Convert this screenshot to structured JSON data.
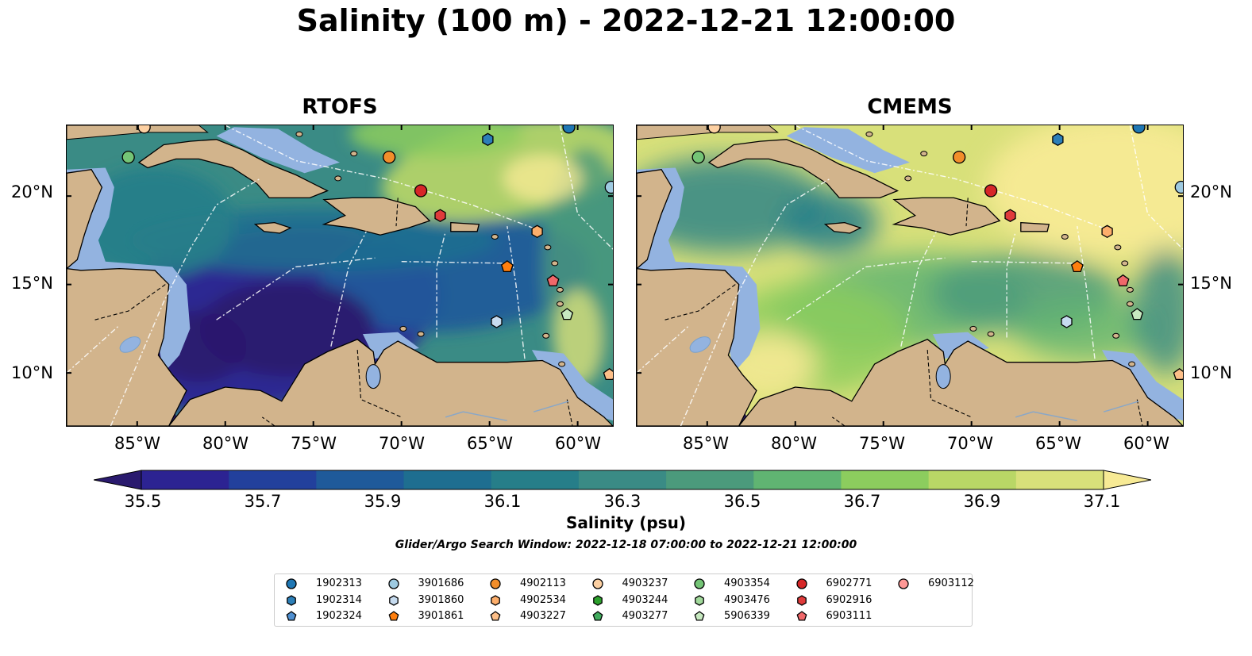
{
  "title": "Salinity (100 m) - 2022-12-21 12:00:00",
  "panels": [
    {
      "id": "rtofs",
      "title": "RTOFS"
    },
    {
      "id": "cmems",
      "title": "CMEMS"
    }
  ],
  "map": {
    "lon_range": [
      -89,
      -58
    ],
    "lat_range": [
      7,
      24
    ],
    "lon_ticks": [
      "85°W",
      "80°W",
      "75°W",
      "70°W",
      "65°W",
      "60°W"
    ],
    "lat_ticks": [
      "20°N",
      "15°N",
      "10°N"
    ],
    "colors": {
      "land": "#d2b48c",
      "shelf": "#93b3e0",
      "deep_ocean": "#2a1a64",
      "coast": "#000000"
    }
  },
  "colorbar": {
    "title": "Salinity (psu)",
    "ticks": [
      "35.5",
      "35.7",
      "35.9",
      "36.1",
      "36.3",
      "36.5",
      "36.7",
      "36.9",
      "37.1"
    ],
    "min": 35.4,
    "max": 37.2,
    "extend": "both",
    "colors": [
      "#2a1a6e",
      "#2c2392",
      "#22409c",
      "#1f5a9a",
      "#1e6e90",
      "#267e89",
      "#3a8b85",
      "#4b9a7c",
      "#60b472",
      "#8ccd5e",
      "#b9d766",
      "#d8e07a",
      "#f7ea95"
    ]
  },
  "search_window": "Glider/Argo Search Window: 2022-12-18 07:00:00 to 2022-12-21 12:00:00",
  "legend": [
    {
      "id": "1902313",
      "shape": "circle",
      "color": "#1f77b4"
    },
    {
      "id": "1902314",
      "shape": "hexagon",
      "color": "#2c7fb8"
    },
    {
      "id": "1902324",
      "shape": "pentagon",
      "color": "#4f8fd0"
    },
    {
      "id": "3901686",
      "shape": "circle",
      "color": "#9ecae1"
    },
    {
      "id": "3901860",
      "shape": "hexagon",
      "color": "#c6dbef"
    },
    {
      "id": "3901861",
      "shape": "pentagon",
      "color": "#ff7f0e"
    },
    {
      "id": "4902113",
      "shape": "circle",
      "color": "#f28e2b"
    },
    {
      "id": "4902534",
      "shape": "hexagon",
      "color": "#fdae6b"
    },
    {
      "id": "4903227",
      "shape": "pentagon",
      "color": "#fdbf88"
    },
    {
      "id": "4903237",
      "shape": "circle",
      "color": "#fdd0a2"
    },
    {
      "id": "4903244",
      "shape": "hexagon",
      "color": "#2ca02c"
    },
    {
      "id": "4903277",
      "shape": "pentagon",
      "color": "#41ab5d"
    },
    {
      "id": "4903354",
      "shape": "circle",
      "color": "#74c476"
    },
    {
      "id": "4903476",
      "shape": "hexagon",
      "color": "#a1d99b"
    },
    {
      "id": "5906339",
      "shape": "pentagon",
      "color": "#c7e9c0"
    },
    {
      "id": "6902771",
      "shape": "circle",
      "color": "#d62728"
    },
    {
      "id": "6902916",
      "shape": "hexagon",
      "color": "#e03b3b"
    },
    {
      "id": "6903111",
      "shape": "pentagon",
      "color": "#f0686a"
    },
    {
      "id": "6903112",
      "shape": "circle",
      "color": "#ff9896"
    }
  ],
  "floats": [
    {
      "id": "1902313",
      "lon": -60.5,
      "lat": 23.9
    },
    {
      "id": "1902314",
      "lon": -65.1,
      "lat": 23.2
    },
    {
      "id": "3901686",
      "lon": -58.1,
      "lat": 20.5
    },
    {
      "id": "3901860",
      "lon": -64.6,
      "lat": 12.9
    },
    {
      "id": "3901861",
      "lon": -64.0,
      "lat": 16.0
    },
    {
      "id": "4902113",
      "lon": -70.7,
      "lat": 22.2
    },
    {
      "id": "4902534",
      "lon": -62.3,
      "lat": 18.0
    },
    {
      "id": "4903227",
      "lon": -58.2,
      "lat": 9.9
    },
    {
      "id": "4903237",
      "lon": -84.6,
      "lat": 23.9
    },
    {
      "id": "4903354",
      "lon": -85.5,
      "lat": 22.2
    },
    {
      "id": "5906339",
      "lon": -60.6,
      "lat": 13.3
    },
    {
      "id": "6902771",
      "lon": -68.9,
      "lat": 20.3
    },
    {
      "id": "6902916",
      "lon": -67.8,
      "lat": 18.9
    },
    {
      "id": "6903111",
      "lon": -61.4,
      "lat": 15.2
    }
  ]
}
